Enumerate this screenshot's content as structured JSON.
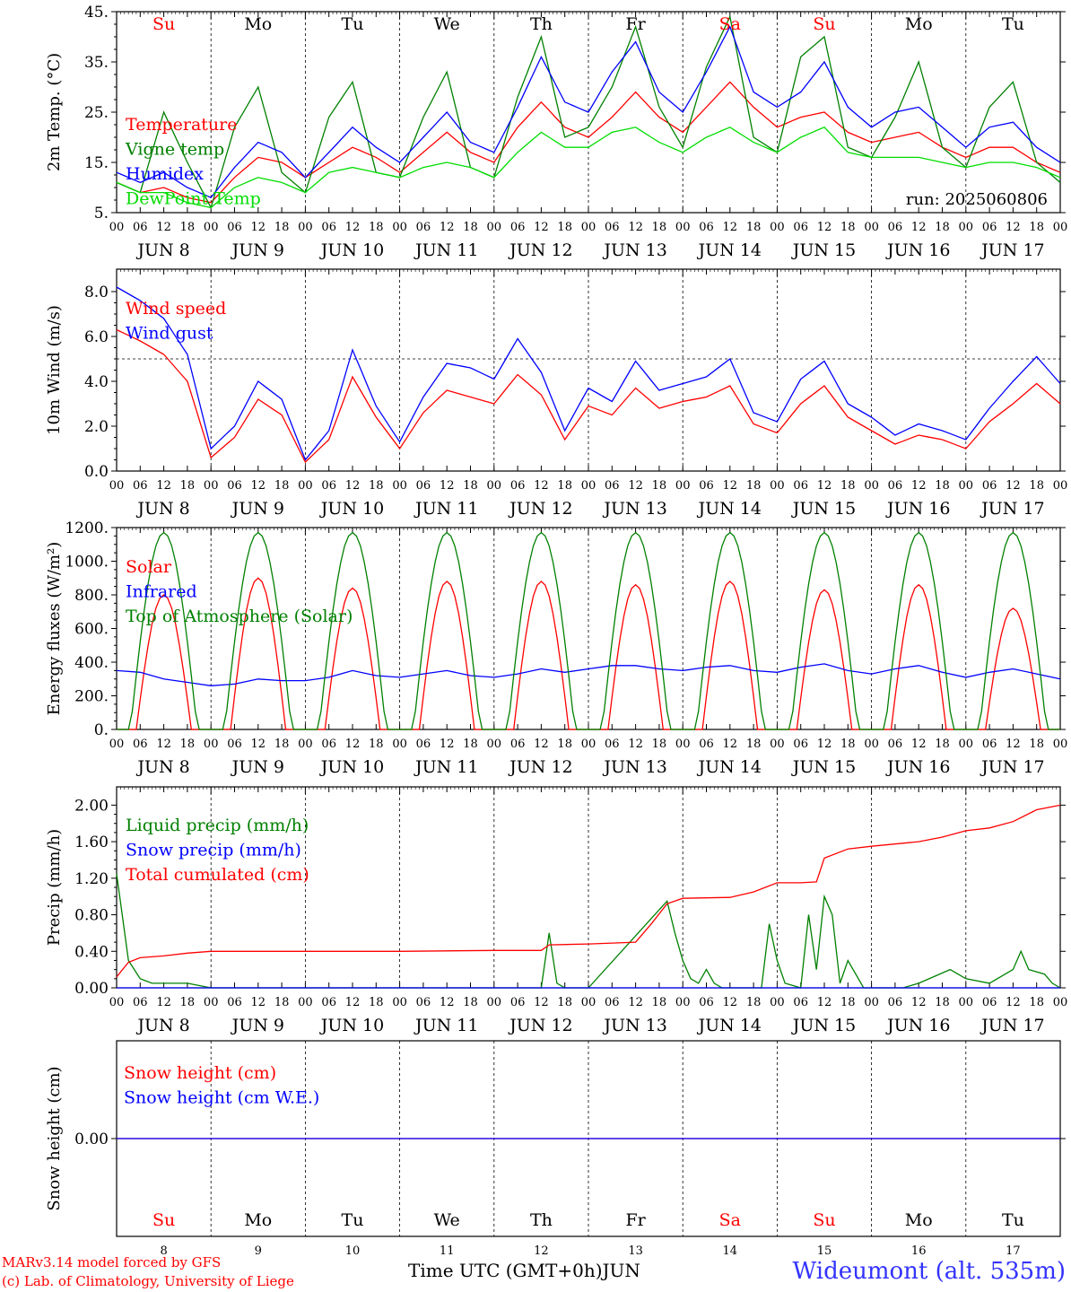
{
  "run_label": "run: 2025060806",
  "footer": {
    "model": "MARv3.14 model forced by GFS",
    "lab": "(c) Lab. of Climatology, University of Liege",
    "time_axis": "Time UTC (GMT+0h)",
    "month": "JUN",
    "station": "Wideumont (alt. 535m)"
  },
  "days": [
    "Su",
    "Mo",
    "Tu",
    "We",
    "Th",
    "Fr",
    "Sa",
    "Su",
    "Mo",
    "Tu"
  ],
  "weekend_color": "#ff0000",
  "date_labels": [
    "JUN  8",
    "JUN  9",
    "JUN 10",
    "JUN 11",
    "JUN 12",
    "JUN 13",
    "JUN 14",
    "JUN 15",
    "JUN 16",
    "JUN 17"
  ],
  "bottom_day_numbers": [
    "8",
    "9",
    "10",
    "11",
    "12",
    "13",
    "14",
    "15",
    "16",
    "17"
  ],
  "hour_ticks": [
    "00",
    "06",
    "12",
    "18"
  ],
  "chart_data": [
    {
      "type": "line",
      "id": "temperature",
      "ylabel": "2m Temp. (°C)",
      "ylim": [
        5,
        45
      ],
      "yticks": [
        5,
        15,
        25,
        35,
        45
      ],
      "ytick_labels": [
        "5.",
        "15.",
        "25.",
        "35.",
        "45."
      ],
      "x_unit": "hours since Jun 8 00 UTC",
      "x": [
        0,
        6,
        12,
        18,
        24,
        30,
        36,
        42,
        48,
        54,
        60,
        66,
        72,
        78,
        84,
        90,
        96,
        102,
        108,
        114,
        120,
        126,
        132,
        138,
        144,
        150,
        156,
        162,
        168,
        174,
        180,
        186,
        192,
        198,
        204,
        210,
        216,
        222,
        228,
        234,
        240
      ],
      "series": [
        {
          "name": "Temperature",
          "color": "#ff0000",
          "values": [
            11,
            9,
            10,
            8,
            7,
            12,
            16,
            15,
            12,
            15,
            18,
            16,
            13,
            17,
            21,
            17,
            15,
            22,
            27,
            22,
            20,
            24,
            29,
            24,
            21,
            26,
            31,
            26,
            22,
            24,
            25,
            21,
            19,
            20,
            21,
            18,
            16,
            18,
            18,
            15,
            13
          ]
        },
        {
          "name": "Vigne temp",
          "color": "#008000",
          "values": [
            11,
            9,
            25,
            15,
            6,
            22,
            30,
            13,
            9,
            24,
            31,
            13,
            12,
            24,
            33,
            14,
            12,
            28,
            40,
            20,
            22,
            30,
            42,
            26,
            18,
            34,
            44,
            20,
            17,
            36,
            40,
            18,
            16,
            24,
            35,
            18,
            14,
            26,
            31,
            15,
            11
          ]
        },
        {
          "name": "Humidex",
          "color": "#0000ff",
          "values": [
            13,
            11,
            13,
            10,
            8,
            14,
            19,
            17,
            12,
            17,
            22,
            18,
            15,
            20,
            25,
            19,
            17,
            26,
            36,
            27,
            25,
            33,
            39,
            29,
            25,
            33,
            42,
            29,
            26,
            29,
            35,
            26,
            22,
            25,
            26,
            22,
            18,
            22,
            23,
            18,
            15
          ]
        },
        {
          "name": "DewPoint Temp",
          "color": "#00dd00",
          "values": [
            11,
            9,
            9,
            7,
            6,
            10,
            12,
            11,
            9,
            13,
            14,
            13,
            12,
            14,
            15,
            14,
            12,
            17,
            21,
            18,
            18,
            21,
            22,
            19,
            17,
            20,
            22,
            19,
            17,
            20,
            22,
            17,
            16,
            16,
            16,
            15,
            14,
            15,
            15,
            14,
            12
          ]
        }
      ]
    },
    {
      "type": "line",
      "id": "wind",
      "ylabel": "10m Wind (m/s)",
      "ylim": [
        0,
        9
      ],
      "yticks": [
        0,
        2,
        4,
        6,
        8
      ],
      "ytick_labels": [
        "0.0",
        "2.0",
        "4.0",
        "6.0",
        "8.0"
      ],
      "reference_line": 5,
      "x_unit": "hours since Jun 8 00 UTC",
      "x": [
        0,
        6,
        12,
        18,
        24,
        30,
        36,
        42,
        48,
        54,
        60,
        66,
        72,
        78,
        84,
        90,
        96,
        102,
        108,
        114,
        120,
        126,
        132,
        138,
        144,
        150,
        156,
        162,
        168,
        174,
        180,
        186,
        192,
        198,
        204,
        210,
        216,
        222,
        228,
        234,
        240
      ],
      "series": [
        {
          "name": "Wind speed",
          "color": "#ff0000",
          "values": [
            6.3,
            5.8,
            5.2,
            4.0,
            0.6,
            1.5,
            3.2,
            2.5,
            0.4,
            1.4,
            4.2,
            2.4,
            1.0,
            2.6,
            3.6,
            3.3,
            3.0,
            4.3,
            3.4,
            1.4,
            2.9,
            2.5,
            3.7,
            2.8,
            3.1,
            3.3,
            3.8,
            2.1,
            1.7,
            3.0,
            3.8,
            2.4,
            1.8,
            1.2,
            1.6,
            1.4,
            1.0,
            2.2,
            3.0,
            3.9,
            3.0
          ]
        },
        {
          "name": "Wind gust",
          "color": "#0000ff",
          "values": [
            8.2,
            7.6,
            6.8,
            5.2,
            1.0,
            2.0,
            4.0,
            3.2,
            0.5,
            1.8,
            5.4,
            2.9,
            1.3,
            3.3,
            4.8,
            4.6,
            4.1,
            5.9,
            4.4,
            1.8,
            3.7,
            3.1,
            4.9,
            3.6,
            3.9,
            4.2,
            5.0,
            2.6,
            2.2,
            4.1,
            4.9,
            3.0,
            2.4,
            1.6,
            2.1,
            1.8,
            1.4,
            2.8,
            4.0,
            5.1,
            3.9
          ]
        }
      ]
    },
    {
      "type": "line",
      "id": "energy",
      "ylabel": "Energy fluxes (W/m²)",
      "ylim": [
        0,
        1200
      ],
      "yticks": [
        0,
        200,
        400,
        600,
        800,
        1000,
        1200
      ],
      "ytick_labels": [
        "0.",
        "200.",
        "400.",
        "600.",
        "800.",
        "1000.",
        "1200."
      ],
      "x_unit": "hours since Jun 8 00 UTC",
      "series": [
        {
          "name": "Solar",
          "color": "#ff0000",
          "daily_peak": [
            800,
            900,
            840,
            880,
            880,
            860,
            880,
            830,
            860,
            720
          ]
        },
        {
          "name": "Infrared",
          "color": "#0000ff",
          "values": [
            350,
            340,
            300,
            280,
            260,
            270,
            300,
            290,
            290,
            310,
            350,
            320,
            310,
            330,
            350,
            320,
            310,
            330,
            360,
            340,
            360,
            380,
            380,
            360,
            350,
            370,
            380,
            350,
            340,
            370,
            390,
            350,
            330,
            360,
            380,
            340,
            310,
            340,
            360,
            330,
            300
          ]
        },
        {
          "name": "Top of Atmosphere (Solar)",
          "color": "#008000",
          "daily_peak": [
            1170,
            1170,
            1170,
            1170,
            1170,
            1170,
            1170,
            1170,
            1170,
            1170
          ]
        }
      ]
    },
    {
      "type": "line",
      "id": "precip",
      "ylabel": "Precip (mm/h)",
      "ylim": [
        0,
        2.2
      ],
      "yticks": [
        0,
        0.4,
        0.8,
        1.2,
        1.6,
        2.0
      ],
      "ytick_labels": [
        "0.00",
        "0.40",
        "0.80",
        "1.20",
        "1.60",
        "2.00"
      ],
      "x_unit": "hours since Jun 8 00 UTC",
      "series": [
        {
          "name": "Liquid precip (mm/h)",
          "color": "#008000",
          "x": [
            0,
            3,
            6,
            9,
            12,
            18,
            24,
            96,
            108,
            110,
            112,
            114,
            120,
            140,
            142,
            144,
            146,
            148,
            150,
            152,
            154,
            156,
            164,
            166,
            168,
            170,
            174,
            176,
            178,
            180,
            182,
            184,
            186,
            190,
            192,
            200,
            204,
            212,
            214,
            216,
            222,
            226,
            228,
            230,
            232,
            236,
            238,
            240
          ],
          "values": [
            1.25,
            0.3,
            0.1,
            0.05,
            0.05,
            0.05,
            0,
            0,
            0,
            0.6,
            0.05,
            0,
            0,
            0.95,
            0.6,
            0.3,
            0.1,
            0.05,
            0.2,
            0.05,
            0,
            0,
            0,
            0.7,
            0.3,
            0.05,
            0,
            0.8,
            0.2,
            1.0,
            0.8,
            0.05,
            0.3,
            0,
            0,
            0,
            0.05,
            0.2,
            0.15,
            0.1,
            0.05,
            0.15,
            0.2,
            0.4,
            0.2,
            0.15,
            0.05,
            0
          ]
        },
        {
          "name": "Snow precip (mm/h)",
          "color": "#0000ff",
          "x": [
            0,
            240
          ],
          "values": [
            0,
            0
          ]
        },
        {
          "name": "Total cumulated (cm)",
          "color": "#ff0000",
          "x": [
            0,
            3,
            6,
            12,
            18,
            24,
            48,
            72,
            96,
            108,
            110,
            120,
            132,
            136,
            140,
            144,
            156,
            162,
            168,
            174,
            178,
            180,
            186,
            192,
            204,
            210,
            216,
            222,
            228,
            234,
            240
          ],
          "values": [
            0.12,
            0.28,
            0.33,
            0.35,
            0.38,
            0.4,
            0.4,
            0.4,
            0.41,
            0.41,
            0.47,
            0.48,
            0.5,
            0.7,
            0.92,
            0.98,
            0.99,
            1.05,
            1.15,
            1.15,
            1.16,
            1.42,
            1.52,
            1.55,
            1.6,
            1.65,
            1.72,
            1.75,
            1.82,
            1.95,
            2.0
          ]
        }
      ]
    },
    {
      "type": "line",
      "id": "snow",
      "ylabel": "Snow height (cm)",
      "ylim": [
        -1,
        1
      ],
      "yticks": [
        0
      ],
      "ytick_labels": [
        "0.00"
      ],
      "series": [
        {
          "name": "Snow height (cm)",
          "color": "#ff0000",
          "x": [
            0,
            240
          ],
          "values": [
            0,
            0
          ]
        },
        {
          "name": "Snow height (cm W.E.)",
          "color": "#0000ff",
          "x": [
            0,
            240
          ],
          "values": [
            0,
            0
          ]
        }
      ]
    }
  ]
}
